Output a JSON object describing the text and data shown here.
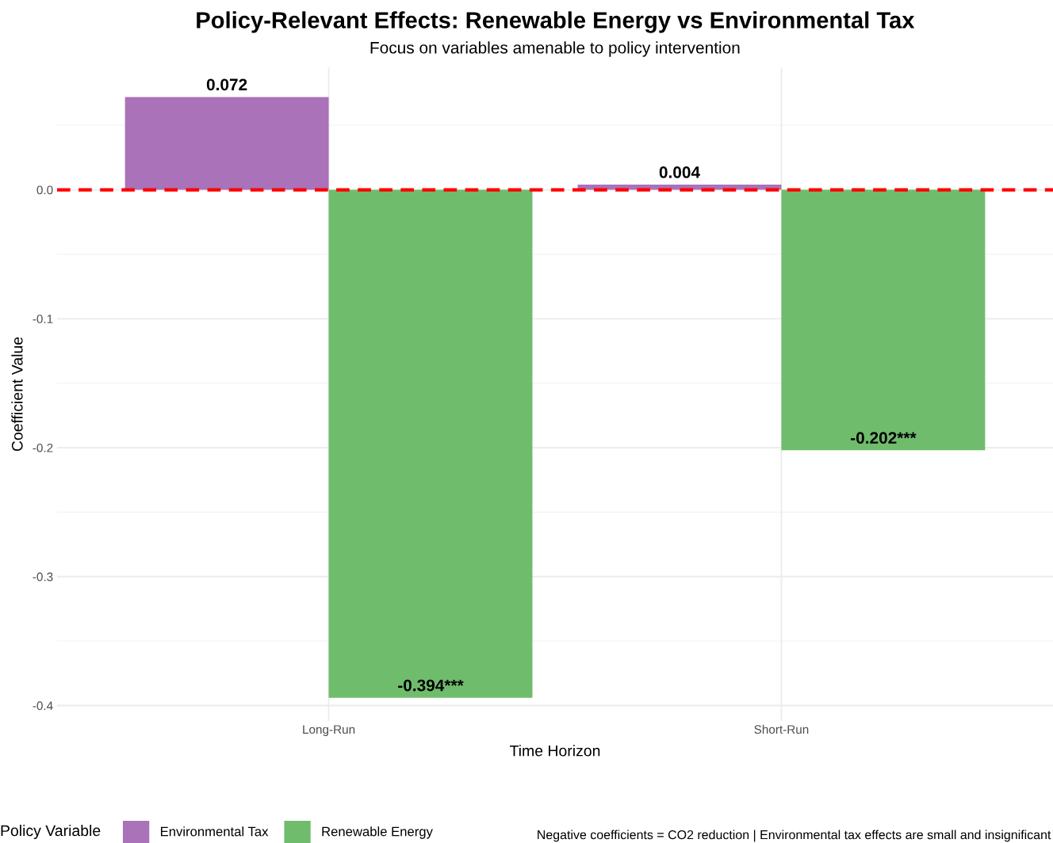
{
  "chart_data": {
    "type": "bar",
    "title": "Policy-Relevant Effects: Renewable Energy vs Environmental Tax",
    "subtitle": "Focus on variables amenable to policy intervention",
    "xlabel": "Time Horizon",
    "ylabel": "Coefficient Value",
    "legend_title": "Policy Variable",
    "categories": [
      "Long-Run",
      "Short-Run"
    ],
    "series": [
      {
        "name": "Environmental Tax",
        "color": "#aa72b8",
        "values": [
          0.072,
          0.004
        ],
        "value_labels": [
          "0.072",
          "0.004"
        ]
      },
      {
        "name": "Renewable Energy",
        "color": "#70bc6d",
        "values": [
          -0.394,
          -0.202
        ],
        "value_labels": [
          "-0.394***",
          "-0.202***"
        ]
      }
    ],
    "ylim": [
      -0.412,
      0.095
    ],
    "yticks": [
      {
        "value": -0.4,
        "label": "-0.4"
      },
      {
        "value": -0.3,
        "label": "-0.3"
      },
      {
        "value": -0.2,
        "label": "-0.2"
      },
      {
        "value": -0.1,
        "label": "-0.1"
      },
      {
        "value": 0.0,
        "label": "0.0"
      }
    ],
    "ref_lines": [
      {
        "axis": "y",
        "value": 0,
        "label": null,
        "color": "#ff0000",
        "line_style": "dashed"
      }
    ],
    "grid": true,
    "legend": "bottom",
    "annotations": [
      "Negative coefficients = CO2 reduction | Environmental tax effects are small and insignificant"
    ]
  }
}
